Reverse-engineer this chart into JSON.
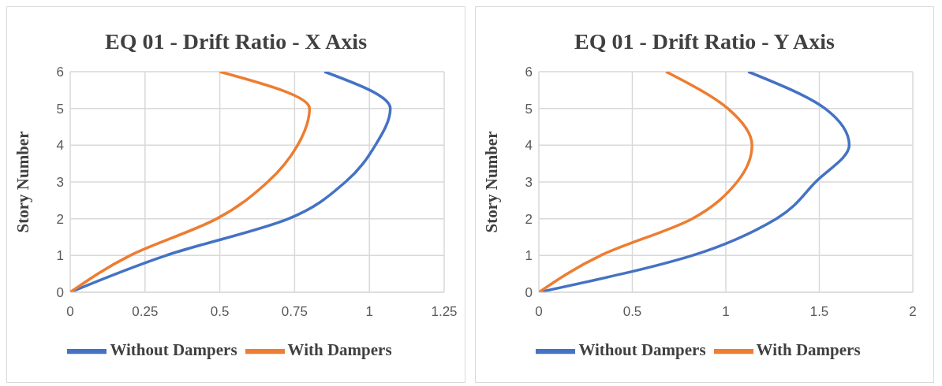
{
  "chart_data": [
    {
      "type": "line",
      "title": "EQ 01 - Drift Ratio - X Axis",
      "ylabel": "Story Number",
      "xlim": [
        0,
        1.25
      ],
      "xticks": [
        0,
        0.25,
        0.5,
        0.75,
        1,
        1.25
      ],
      "ylim": [
        0,
        6
      ],
      "yticks": [
        0,
        1,
        2,
        3,
        4,
        5,
        6
      ],
      "grid": true,
      "legend": "bottom",
      "marker": "none",
      "line_style": "solid",
      "series": [
        {
          "name": "Without Dampers",
          "color": "#4472c4",
          "x": [
            0,
            0.32,
            0.73,
            0.92,
            1.02,
            1.07,
            0.85
          ],
          "values": [
            0,
            1,
            2,
            3,
            4,
            5,
            6
          ]
        },
        {
          "name": "With Dampers",
          "color": "#ed7d31",
          "x": [
            0,
            0.2,
            0.49,
            0.66,
            0.76,
            0.8,
            0.5
          ],
          "values": [
            0,
            1,
            2,
            3,
            4,
            5,
            6
          ]
        }
      ]
    },
    {
      "type": "line",
      "title": "EQ 01 - Drift Ratio - Y Axis",
      "ylabel": "Story Number",
      "xlim": [
        0,
        2
      ],
      "xticks": [
        0,
        0.5,
        1,
        1.5,
        2
      ],
      "ylim": [
        0,
        6
      ],
      "yticks": [
        0,
        1,
        2,
        3,
        4,
        5,
        6
      ],
      "grid": true,
      "legend": "bottom",
      "marker": "none",
      "line_style": "solid",
      "series": [
        {
          "name": "Without Dampers",
          "color": "#4472c4",
          "x": [
            0,
            0.82,
            1.27,
            1.48,
            1.66,
            1.53,
            1.12
          ],
          "values": [
            0,
            1,
            2,
            3,
            4,
            5,
            6
          ]
        },
        {
          "name": "With Dampers",
          "color": "#ed7d31",
          "x": [
            0,
            0.33,
            0.82,
            1.06,
            1.14,
            1.01,
            0.68
          ],
          "values": [
            0,
            1,
            2,
            3,
            4,
            5,
            6
          ]
        }
      ]
    }
  ]
}
